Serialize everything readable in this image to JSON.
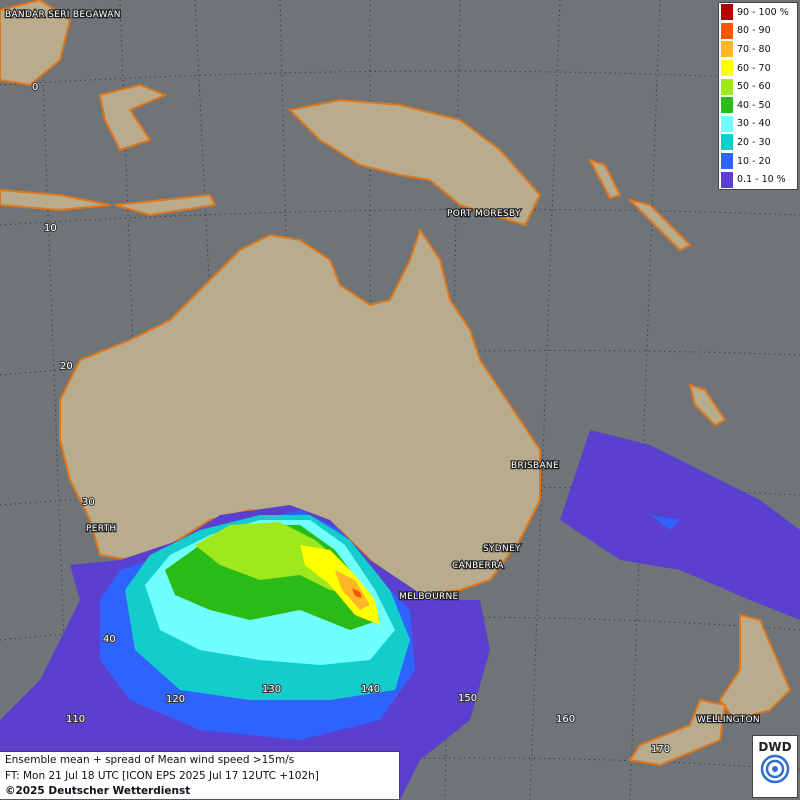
{
  "legend": [
    {
      "label": "90 - 100 %",
      "color": "#b30000"
    },
    {
      "label": "80 - 90",
      "color": "#ff5500"
    },
    {
      "label": "70 - 80",
      "color": "#ffb727"
    },
    {
      "label": "60 - 70",
      "color": "#ffff00"
    },
    {
      "label": "50 - 60",
      "color": "#9ee81e"
    },
    {
      "label": "40 - 50",
      "color": "#2bbb16"
    },
    {
      "label": "30 - 40",
      "color": "#6fffff"
    },
    {
      "label": "20 - 30",
      "color": "#13cccc"
    },
    {
      "label": "10 - 20",
      "color": "#2f63ff"
    },
    {
      "label": "0.1 - 10 %",
      "color": "#5b3fcf"
    }
  ],
  "cities": {
    "bandar": "BANDAR SERI BEGAWAN",
    "port_moresby": "PORT MORESBY",
    "brisbane": "BRISBANE",
    "perth": "PERTH",
    "sydney": "SYDNEY",
    "canberra": "CANBERRA",
    "melbourne": "MELBOURNE",
    "wellington": "WELLINGTON"
  },
  "grid_labels": {
    "lat_0": "0",
    "lat_10": "10",
    "lat_20": "20",
    "lat_30": "30",
    "lat_40": "40",
    "lon_110": "110",
    "lon_120": "120",
    "lon_130": "130",
    "lon_140": "140",
    "lon_150": "150",
    "lon_160": "160",
    "lon_170": "170"
  },
  "info": {
    "line1": "Ensemble mean + spread of Mean wind speed >15m/s",
    "line2": "FT: Mon 21 Jul 18 UTC [ICON EPS 2025 Jul 17 12UTC +102h]",
    "line3": "©2025 Deutscher Wetterdienst"
  },
  "logo_text": "DWD",
  "colors": {
    "ocean": "#6f7478",
    "land": "#b8ac8c",
    "coast": "#e0761c"
  }
}
